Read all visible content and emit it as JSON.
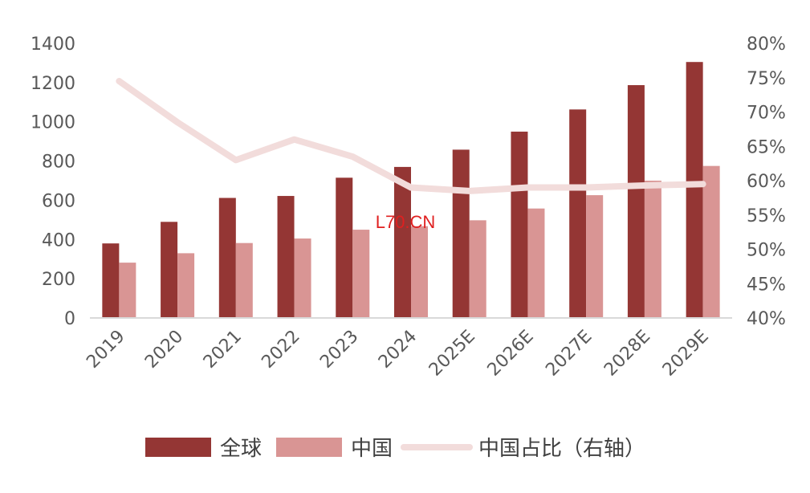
{
  "chart_data": {
    "type": "bar",
    "categories": [
      "2019",
      "2020",
      "2021",
      "2022",
      "2023",
      "2024",
      "2025E",
      "2026E",
      "2027E",
      "2028E",
      "2029E"
    ],
    "series": [
      {
        "name": "全球",
        "type": "bar",
        "axis": "left",
        "color": "#943634",
        "values": [
          380,
          490,
          612,
          622,
          715,
          770,
          858,
          950,
          1063,
          1187,
          1305
        ]
      },
      {
        "name": "中国",
        "type": "bar",
        "axis": "left",
        "color": "#d99594",
        "values": [
          282,
          330,
          382,
          405,
          450,
          468,
          498,
          558,
          626,
          700,
          775
        ]
      },
      {
        "name": "中国占比（右轴）",
        "type": "line",
        "axis": "right",
        "color": "#f2dcdb",
        "values": [
          74.5,
          68.5,
          63.0,
          66.0,
          63.5,
          59.0,
          58.5,
          59.0,
          59.0,
          59.3,
          59.5
        ]
      }
    ],
    "ylim": [
      0,
      1400
    ],
    "yticks": [
      "0",
      "200",
      "400",
      "600",
      "800",
      "1000",
      "1200",
      "1400"
    ],
    "y2lim": [
      40,
      80
    ],
    "y2ticks": [
      "40%",
      "45%",
      "50%",
      "55%",
      "60%",
      "65%",
      "70%",
      "75%",
      "80%"
    ],
    "grid": false,
    "legend_position": "bottom",
    "watermark": "L70.CN"
  }
}
